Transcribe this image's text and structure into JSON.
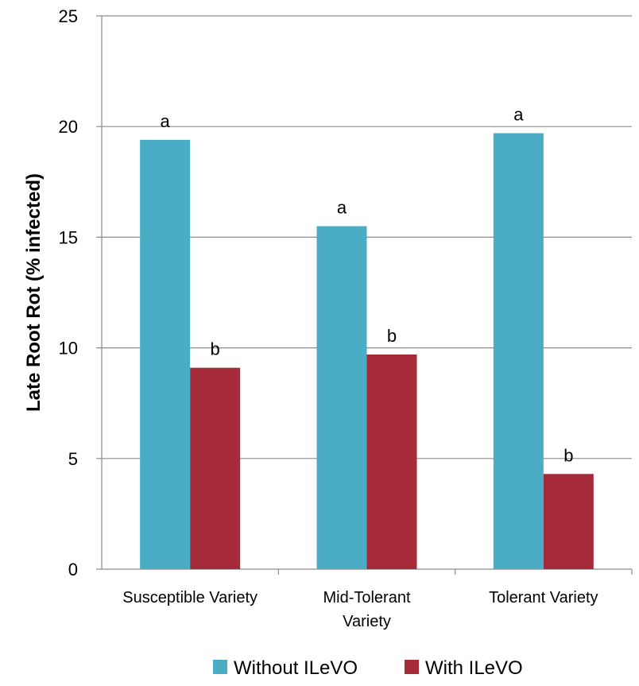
{
  "chart_data": {
    "type": "bar",
    "categories": [
      [
        "Susceptible Variety"
      ],
      [
        "Mid-Tolerant",
        "Variety"
      ],
      [
        "Tolerant Variety"
      ]
    ],
    "series": [
      {
        "name": "Without ILeVO",
        "color": "#4BACC6",
        "values": [
          19.4,
          15.5,
          19.7
        ],
        "labels": [
          "a",
          "a",
          "a"
        ]
      },
      {
        "name": "With ILeVO",
        "color": "#A52A3A",
        "values": [
          9.1,
          9.7,
          4.3
        ],
        "labels": [
          "b",
          "b",
          "b"
        ]
      }
    ],
    "title": "",
    "xlabel": "",
    "ylabel": "Late Root Rot (% infected)",
    "ylim": [
      0,
      25
    ],
    "yticks": [
      0,
      5,
      10,
      15,
      20,
      25
    ],
    "grid": true,
    "legend_position": "bottom"
  }
}
